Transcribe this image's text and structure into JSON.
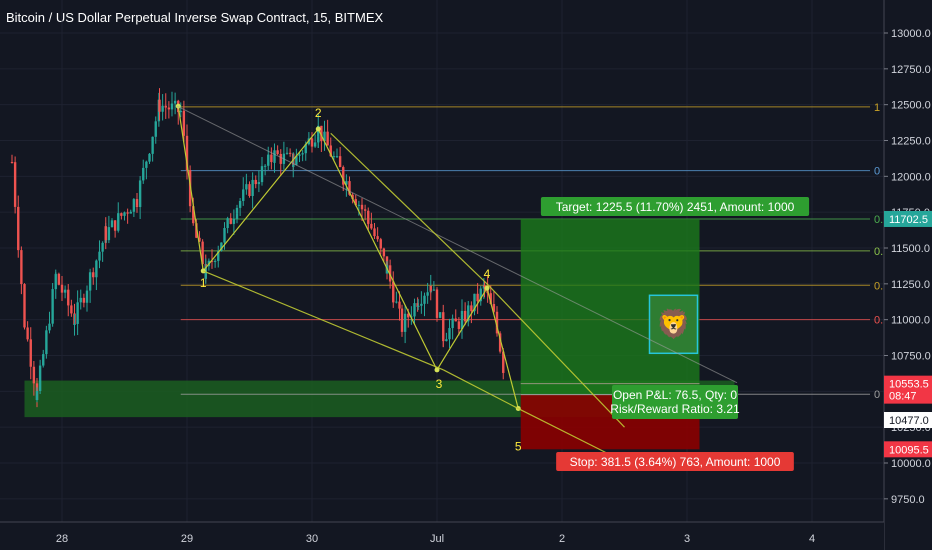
{
  "header": {
    "title": "Bitcoin / US Dollar Perpetual Inverse Swap Contract, 15, BITMEX"
  },
  "chart_data": {
    "type": "candlestick",
    "ylim": [
      9600,
      13200
    ],
    "y_ticks": [
      13000.0,
      12750.0,
      12500.0,
      12250.0,
      12000.0,
      11750.0,
      11500.0,
      11250.0,
      11000.0,
      10750.0,
      10500.0,
      10250.0,
      10000.0,
      9750.0
    ],
    "x_ticks": [
      "28",
      "29",
      "30",
      "Jul",
      "2",
      "3",
      "4"
    ],
    "colors": {
      "up": "#26a69a",
      "down": "#ef5350",
      "background": "#131722"
    },
    "ohlc_path": [
      {
        "day": 27.6,
        "price": 12100
      },
      {
        "day": 27.7,
        "price": 10980
      },
      {
        "day": 27.8,
        "price": 10480
      },
      {
        "day": 27.95,
        "price": 11300
      },
      {
        "day": 28.1,
        "price": 11000
      },
      {
        "day": 28.35,
        "price": 11600
      },
      {
        "day": 28.6,
        "price": 11850
      },
      {
        "day": 28.78,
        "price": 12500
      },
      {
        "day": 28.95,
        "price": 12450
      },
      {
        "day": 29.05,
        "price": 11650
      },
      {
        "day": 29.15,
        "price": 11320
      },
      {
        "day": 29.4,
        "price": 11800
      },
      {
        "day": 29.7,
        "price": 12150
      },
      {
        "day": 29.85,
        "price": 12100
      },
      {
        "day": 30.05,
        "price": 12330
      },
      {
        "day": 30.25,
        "price": 12000
      },
      {
        "day": 30.45,
        "price": 11700
      },
      {
        "day": 30.6,
        "price": 11350
      },
      {
        "day": 30.72,
        "price": 10950
      },
      {
        "day": 30.85,
        "price": 11150
      },
      {
        "day": 30.95,
        "price": 11250
      },
      {
        "day": 31.05,
        "price": 10900
      },
      {
        "day": 31.2,
        "price": 11000
      },
      {
        "day": 31.38,
        "price": 11220
      },
      {
        "day": 31.48,
        "price": 10950
      },
      {
        "day": 31.55,
        "price": 10560
      }
    ],
    "fib_levels": [
      {
        "label": "1",
        "price": 12485,
        "color": "#c9a227"
      },
      {
        "label": "0",
        "price": 12040,
        "color": "#5b9bd5"
      },
      {
        "label": "0.",
        "price": 11702.5,
        "color": "#4caf50"
      },
      {
        "label": "0.",
        "price": 11480,
        "color": "#8bc34a"
      },
      {
        "label": "0.",
        "price": 11240,
        "color": "#c9a227"
      },
      {
        "label": "0.",
        "price": 11000,
        "color": "#ef5350"
      },
      {
        "label": "0",
        "price": 10480,
        "color": "#9e9e9e"
      }
    ],
    "wave_points": [
      {
        "label": "1",
        "day": 29.13,
        "price": 11340
      },
      {
        "label": "2",
        "day": 30.05,
        "price": 12330
      },
      {
        "label": "3",
        "day": 31.0,
        "price": 10650
      },
      {
        "label": "4",
        "day": 31.4,
        "price": 11220
      },
      {
        "label": "5",
        "day": 31.65,
        "price": 10380
      }
    ],
    "position": {
      "entry": 10477.0,
      "target": 11702.5,
      "stop": 10095.5,
      "start_day": 31.67,
      "end_day": 33.1,
      "target_label": "Target: 1225.5 (11.70%) 2451, Amount: 1000",
      "stop_label": "Stop: 381.5 (3.64%) 763, Amount: 1000",
      "pnl_label": "Open P&L: 76.5, Qty: 0",
      "rr_label": "Risk/Reward Ratio: 3.21"
    },
    "support_zone": {
      "top": 10575,
      "bottom": 10320
    },
    "price_tags": [
      {
        "text": "11702.5",
        "price": 11702.5,
        "bg": "#26a69a",
        "fg": "#ffffff"
      },
      {
        "text": "10553.5",
        "price": 10553.5,
        "bg": "#f23645",
        "fg": "#ffffff"
      },
      {
        "text": "08:47",
        "price": 10470,
        "bg": "#f23645",
        "fg": "#ffffff"
      },
      {
        "text": "10477.0",
        "price": 10300,
        "bg": "#ffffff",
        "fg": "#131722"
      },
      {
        "text": "10095.5",
        "price": 10095.5,
        "bg": "#f23645",
        "fg": "#ffffff"
      }
    ],
    "emoji": "🦁"
  }
}
